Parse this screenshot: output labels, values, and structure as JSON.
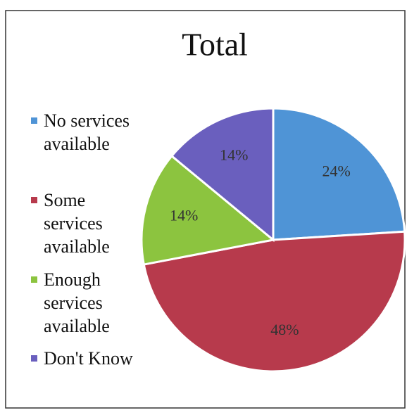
{
  "chart_data": {
    "type": "pie",
    "title": "Total",
    "series": [
      {
        "name": "No services available",
        "color": "#4f94d6",
        "values": [
          24
        ],
        "value_labels": [
          "24%"
        ]
      },
      {
        "name": "Some services available",
        "color": "#b73a4c",
        "values": [
          48
        ],
        "value_labels": [
          "48%"
        ]
      },
      {
        "name": "Enough services available",
        "color": "#8cc43f",
        "values": [
          14
        ],
        "value_labels": [
          "14%"
        ]
      },
      {
        "name": "Don't Know",
        "color": "#6a5fbe",
        "values": [
          14
        ],
        "value_labels": [
          "14%"
        ]
      }
    ],
    "legend": "left"
  }
}
